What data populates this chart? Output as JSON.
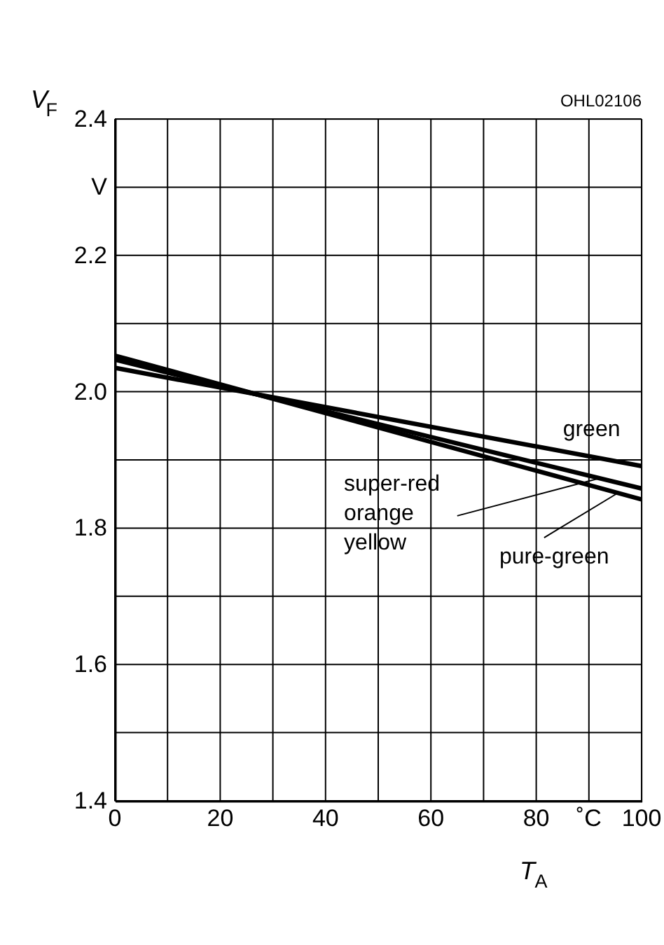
{
  "chart_data": {
    "type": "line",
    "xlabel": "T$_{A}$",
    "ylabel": "V$_{F}$",
    "annotations": [
      "OHL02106"
    ],
    "x": [
      0,
      100
    ],
    "series": [
      {
        "name": "green",
        "color": "#000000",
        "values": [
          2.035,
          1.891
        ]
      },
      {
        "name": "super-red orange yellow",
        "color": "#000000",
        "values": [
          2.047,
          1.858
        ]
      },
      {
        "name": "pure-green",
        "color": "#000000",
        "values": [
          2.053,
          1.842
        ]
      }
    ],
    "xlim": [
      0,
      100
    ],
    "ylim": [
      1.4,
      2.4
    ],
    "xticks": [
      0,
      {
        "value": 10,
        "label": null
      },
      20,
      {
        "value": 30,
        "label": null
      },
      40,
      {
        "value": 50,
        "label": null
      },
      60,
      {
        "value": 70,
        "label": null
      },
      80,
      {
        "value": 90,
        "label": "˚C"
      },
      100
    ],
    "yticks": [
      1.4,
      {
        "value": 1.5,
        "label": null
      },
      1.6,
      {
        "value": 1.7,
        "label": null
      },
      1.8,
      {
        "value": 1.9,
        "label": null
      },
      {
        "value": 2.0,
        "label": "2.0"
      },
      {
        "value": 2.1,
        "label": null
      },
      2.2,
      {
        "value": 2.3,
        "label": "V"
      },
      2.4
    ],
    "grid": true,
    "marker": "none",
    "line_style": "solid"
  }
}
